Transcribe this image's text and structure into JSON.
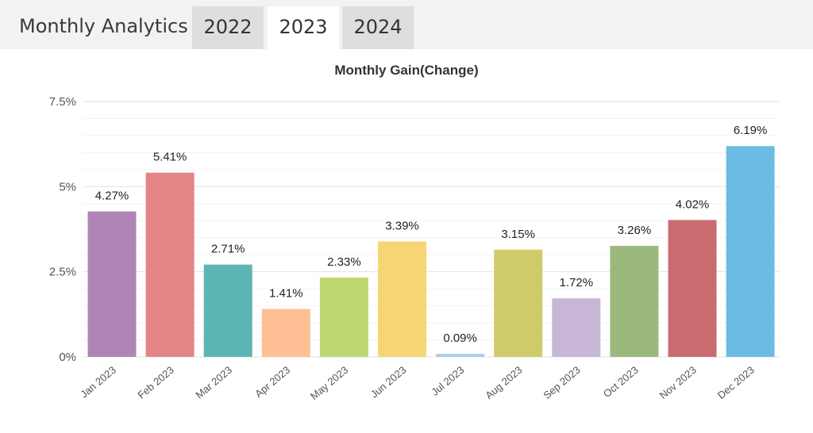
{
  "header": {
    "title": "Monthly Analytics",
    "tabs": [
      {
        "label": "2022",
        "active": false
      },
      {
        "label": "2023",
        "active": true
      },
      {
        "label": "2024",
        "active": false
      }
    ]
  },
  "chart_data": {
    "type": "bar",
    "title": "Monthly Gain(Change)",
    "categories": [
      "Jan 2023",
      "Feb 2023",
      "Mar 2023",
      "Apr 2023",
      "May 2023",
      "Jun 2023",
      "Jul 2023",
      "Aug 2023",
      "Sep 2023",
      "Oct 2023",
      "Nov 2023",
      "Dec 2023"
    ],
    "values": [
      4.27,
      5.41,
      2.71,
      1.41,
      2.33,
      3.39,
      0.09,
      3.15,
      1.72,
      3.26,
      4.02,
      6.19
    ],
    "data_labels": [
      "4.27%",
      "5.41%",
      "2.71%",
      "1.41%",
      "2.33%",
      "3.39%",
      "0.09%",
      "3.15%",
      "1.72%",
      "3.26%",
      "4.02%",
      "6.19%"
    ],
    "colors": [
      "#b184b8",
      "#e38585",
      "#5bb5b3",
      "#ffbf94",
      "#bfd770",
      "#f7d574",
      "#a9cfee",
      "#cfcb6b",
      "#c7b6d6",
      "#9bb97d",
      "#c96b70",
      "#6bbbe5"
    ],
    "yticks": [
      0,
      2.5,
      5,
      7.5
    ],
    "ytick_labels": [
      "0%",
      "2.5%",
      "5%",
      "7.5%"
    ],
    "ylim": [
      0,
      7.5
    ],
    "xlabel": "",
    "ylabel": "",
    "grid": true,
    "legend": "none"
  }
}
